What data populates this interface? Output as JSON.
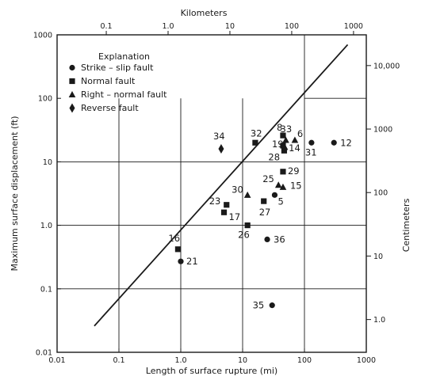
{
  "chart_data": {
    "type": "scatter",
    "title": "",
    "x_scale": "log",
    "y_scale": "log",
    "xlabel": "Length of surface rupture (mi)",
    "ylabel": "Maximum surface displacement (ft)",
    "x2label": "Kilometers",
    "y2label": "Centimeters",
    "xlim": [
      0.01,
      1000
    ],
    "ylim": [
      0.01,
      1000
    ],
    "x_ticks": [
      "0.01",
      "0.1",
      "1.0",
      "10",
      "100",
      "1000"
    ],
    "y_ticks": [
      "0.01",
      "0.1",
      "1.0",
      "10",
      "100",
      "1000"
    ],
    "x2lim_km": [
      0.016,
      1609
    ],
    "x2_ticks": [
      "0.1",
      "1.0",
      "10",
      "100",
      "1000"
    ],
    "y2lim_cm": [
      0.3048,
      30480
    ],
    "y2_ticks": [
      "1.0",
      "10",
      "100",
      "1000",
      "10,000"
    ],
    "grid": true,
    "legend": {
      "title": "Explanation",
      "position": "top-left",
      "entries": [
        {
          "marker": "circle",
          "label": "Strike – slip fault"
        },
        {
          "marker": "square",
          "label": "Normal fault"
        },
        {
          "marker": "triangle",
          "label": "Right – normal fault"
        },
        {
          "marker": "diamond",
          "label": "Reverse fault"
        }
      ]
    },
    "trend_line": {
      "x": [
        0.04,
        500
      ],
      "y": [
        0.026,
        700
      ]
    },
    "series": [
      {
        "type": "circle",
        "points": [
          {
            "label": "21",
            "x": 1.0,
            "y": 0.27
          },
          {
            "label": "36",
            "x": 25,
            "y": 0.6
          },
          {
            "label": "35",
            "x": 30,
            "y": 0.055
          },
          {
            "label": "5",
            "x": 33,
            "y": 3.0
          },
          {
            "label": "31",
            "x": 130,
            "y": 20
          },
          {
            "label": "12",
            "x": 300,
            "y": 20
          }
        ]
      },
      {
        "type": "square",
        "points": [
          {
            "label": "16",
            "x": 0.9,
            "y": 0.42
          },
          {
            "label": "17",
            "x": 5.0,
            "y": 1.6
          },
          {
            "label": "23",
            "x": 5.5,
            "y": 2.1
          },
          {
            "label": "26",
            "x": 12,
            "y": 1.0
          },
          {
            "label": "27",
            "x": 22,
            "y": 2.4
          },
          {
            "label": "29",
            "x": 45,
            "y": 7.0
          },
          {
            "label": "32",
            "x": 16,
            "y": 20
          },
          {
            "label": "8",
            "x": 45,
            "y": 26
          },
          {
            "label": "19",
            "x": 45,
            "y": 18
          },
          {
            "label": "28",
            "x": 47,
            "y": 15
          }
        ]
      },
      {
        "type": "triangle",
        "points": [
          {
            "label": "30",
            "x": 12,
            "y": 3.0
          },
          {
            "label": "25",
            "x": 38,
            "y": 4.3
          },
          {
            "label": "15",
            "x": 45,
            "y": 4.0
          },
          {
            "label": "14",
            "x": 48,
            "y": 17
          },
          {
            "label": "33",
            "x": 50,
            "y": 22
          },
          {
            "label": "6",
            "x": 70,
            "y": 22
          }
        ]
      },
      {
        "type": "diamond",
        "points": [
          {
            "label": "34",
            "x": 4.5,
            "y": 16
          }
        ]
      }
    ]
  }
}
